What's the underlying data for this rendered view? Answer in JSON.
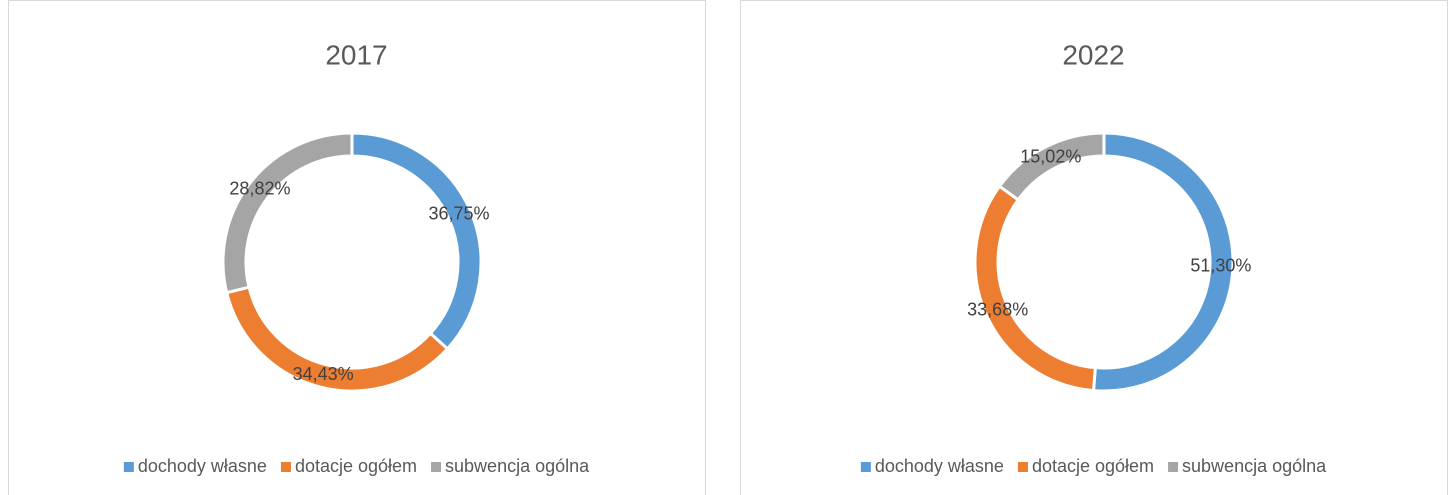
{
  "chart_data": [
    {
      "type": "donut",
      "title": "2017",
      "categories": [
        "dochody własne",
        "dotacje ogółem",
        "subwencja ogólna"
      ],
      "values": [
        36.75,
        34.43,
        28.82
      ],
      "value_labels": [
        "36,75%",
        "34,43%",
        "28,82%"
      ],
      "colors": [
        "#5b9bd5",
        "#ed7d31",
        "#a5a5a5"
      ],
      "legend": "bottom"
    },
    {
      "type": "donut",
      "title": "2022",
      "categories": [
        "dochody własne",
        "dotacje ogółem",
        "subwencja ogólna"
      ],
      "values": [
        51.3,
        33.68,
        15.02
      ],
      "value_labels": [
        "51,30%",
        "33,68%",
        "15,02%"
      ],
      "colors": [
        "#5b9bd5",
        "#ed7d31",
        "#a5a5a5"
      ],
      "legend": "bottom"
    }
  ]
}
